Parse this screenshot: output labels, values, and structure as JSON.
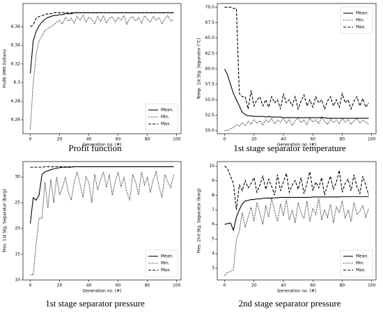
{
  "chart_data": [
    {
      "type": "line",
      "title": "Profit function",
      "xlabel": "Generation no. (#)",
      "ylabel": "Profit (MM Dollars)",
      "x": [
        0,
        2,
        4,
        6,
        8,
        10,
        12,
        14,
        16,
        18,
        20,
        22,
        24,
        26,
        28,
        30,
        32,
        34,
        36,
        38,
        40,
        42,
        44,
        46,
        48,
        50,
        52,
        54,
        56,
        58,
        60,
        62,
        64,
        66,
        68,
        70,
        72,
        74,
        76,
        78,
        80,
        82,
        84,
        86,
        88,
        90,
        92,
        94,
        96,
        98
      ],
      "xlim": [
        -5,
        103
      ],
      "xticks": [
        0,
        20,
        40,
        60,
        80,
        100
      ],
      "ylim": [
        6.245,
        6.385
      ],
      "yticks": [
        6.26,
        6.28,
        6.3,
        6.32,
        6.34,
        6.36
      ],
      "legend": "lower right",
      "series": [
        {
          "name": "Mean.",
          "color": "#000000",
          "dash": "solid",
          "values": [
            6.31,
            6.345,
            6.355,
            6.361,
            6.365,
            6.368,
            6.37,
            6.371,
            6.372,
            6.372,
            6.373,
            6.373,
            6.374,
            6.374,
            6.374,
            6.375,
            6.375,
            6.375,
            6.375,
            6.375,
            6.375,
            6.375,
            6.375,
            6.375,
            6.375,
            6.375,
            6.375,
            6.375,
            6.375,
            6.375,
            6.375,
            6.375,
            6.375,
            6.375,
            6.375,
            6.375,
            6.375,
            6.375,
            6.375,
            6.375,
            6.375,
            6.375,
            6.375,
            6.375,
            6.375,
            6.375,
            6.375,
            6.375,
            6.375,
            6.375
          ]
        },
        {
          "name": "Min.",
          "color": "#000000",
          "dash": "dotted",
          "values": [
            6.25,
            6.3,
            6.33,
            6.345,
            6.35,
            6.356,
            6.358,
            6.36,
            6.362,
            6.365,
            6.367,
            6.363,
            6.37,
            6.366,
            6.369,
            6.364,
            6.371,
            6.367,
            6.372,
            6.365,
            6.37,
            6.368,
            6.363,
            6.371,
            6.366,
            6.372,
            6.364,
            6.369,
            6.371,
            6.365,
            6.37,
            6.367,
            6.372,
            6.363,
            6.369,
            6.371,
            6.366,
            6.37,
            6.364,
            6.372,
            6.368,
            6.365,
            6.371,
            6.367,
            6.37,
            6.363,
            6.369,
            6.372,
            6.366,
            6.368
          ]
        },
        {
          "name": "Max.",
          "color": "#000000",
          "dash": "dashed",
          "values": [
            6.36,
            6.362,
            6.369,
            6.371,
            6.372,
            6.373,
            6.374,
            6.374,
            6.375,
            6.375,
            6.375,
            6.375,
            6.375,
            6.375,
            6.375,
            6.375,
            6.375,
            6.375,
            6.375,
            6.375,
            6.375,
            6.375,
            6.375,
            6.375,
            6.375,
            6.375,
            6.375,
            6.375,
            6.375,
            6.375,
            6.375,
            6.375,
            6.375,
            6.375,
            6.375,
            6.375,
            6.375,
            6.375,
            6.375,
            6.375,
            6.375,
            6.375,
            6.375,
            6.375,
            6.375,
            6.375,
            6.375,
            6.375,
            6.375,
            6.375
          ]
        }
      ]
    },
    {
      "type": "line",
      "title": "1st stage separator temperature",
      "xlabel": "Generation no. (#)",
      "ylabel": "Temp. 1st Stg. Separator (°C)",
      "x": [
        0,
        2,
        4,
        6,
        8,
        10,
        12,
        14,
        16,
        18,
        20,
        22,
        24,
        26,
        28,
        30,
        32,
        34,
        36,
        38,
        40,
        42,
        44,
        46,
        48,
        50,
        52,
        54,
        56,
        58,
        60,
        62,
        64,
        66,
        68,
        70,
        72,
        74,
        76,
        78,
        80,
        82,
        84,
        86,
        88,
        90,
        92,
        94,
        96,
        98
      ],
      "xlim": [
        -5,
        103
      ],
      "xticks": [
        0,
        20,
        40,
        60,
        80,
        100
      ],
      "ylim": [
        49.5,
        70.6
      ],
      "yticks": [
        {
          "value": 50,
          "label": "50.0"
        },
        52.5,
        {
          "value": 55,
          "label": "55.0"
        },
        57.5,
        {
          "value": 60,
          "label": "60.0"
        },
        62.5,
        {
          "value": 65,
          "label": "65.0"
        },
        67.5,
        {
          "value": 70,
          "label": "70.0"
        }
      ],
      "legend": "upper right",
      "series": [
        {
          "name": "Mean.",
          "color": "#000000",
          "dash": "solid",
          "values": [
            60,
            59,
            57.5,
            56,
            55,
            54,
            53,
            52.6,
            52.4,
            52.4,
            52.3,
            52.3,
            52.3,
            52.3,
            52.2,
            52.3,
            52.2,
            52.2,
            52.2,
            52.2,
            52.1,
            52.1,
            52.1,
            52.1,
            52.1,
            52.1,
            52.1,
            52.1,
            52.1,
            52.1,
            52.1,
            52.1,
            52.1,
            52.1,
            52.1,
            52,
            52,
            52,
            52,
            52,
            52,
            52,
            52,
            52,
            52,
            52,
            52,
            52,
            52,
            52
          ]
        },
        {
          "name": "Min.",
          "color": "#000000",
          "dash": "dotted",
          "values": [
            50,
            50,
            50.3,
            50.5,
            51,
            50.7,
            51.3,
            50.8,
            51.5,
            51,
            51.8,
            51.2,
            51.6,
            50.9,
            51.8,
            51.3,
            52,
            51.1,
            51.7,
            51.4,
            52,
            51.2,
            51.8,
            50.8,
            51.6,
            52.1,
            51.3,
            51.7,
            51,
            52,
            51.4,
            51.8,
            51.1,
            52.2,
            51.5,
            51,
            51.9,
            51.3,
            51.7,
            51.1,
            52,
            51.4,
            51.8,
            51,
            51.6,
            52,
            51.2,
            51.7,
            51.4,
            51
          ]
        },
        {
          "name": "Max.",
          "color": "#000000",
          "dash": "dashed",
          "values": [
            70,
            70,
            70,
            69.8,
            69.8,
            56,
            55.5,
            55.5,
            53.5,
            56.5,
            54,
            55,
            55.5,
            54,
            55,
            53.8,
            55.5,
            54.5,
            55,
            53.5,
            56,
            54.5,
            55,
            54,
            55.5,
            53.5,
            54.8,
            55.8,
            54,
            55,
            53.8,
            55.5,
            54.5,
            55,
            53.5,
            54.8,
            55.5,
            54,
            55,
            53.8,
            56,
            54.5,
            55,
            53.5,
            54.8,
            55.5,
            54,
            55.2,
            53.8,
            54.5
          ]
        }
      ]
    },
    {
      "type": "line",
      "title": "1st stage separator pressure",
      "xlabel": "Generation no. (#)",
      "ylabel": "Pres. 1st Stg. Separator (barg)",
      "x": [
        0,
        2,
        4,
        6,
        8,
        10,
        12,
        14,
        16,
        18,
        20,
        22,
        24,
        26,
        28,
        30,
        32,
        34,
        36,
        38,
        40,
        42,
        44,
        46,
        48,
        50,
        52,
        54,
        56,
        58,
        60,
        62,
        64,
        66,
        68,
        70,
        72,
        74,
        76,
        78,
        80,
        82,
        84,
        86,
        88,
        90,
        92,
        94,
        96,
        98
      ],
      "xlim": [
        -5,
        103
      ],
      "xticks": [
        0,
        20,
        40,
        60,
        80,
        100
      ],
      "ylim": [
        10,
        33
      ],
      "yticks": [
        10,
        15,
        20,
        25,
        30
      ],
      "legend": "lower right",
      "series": [
        {
          "name": "Mean.",
          "color": "#000000",
          "dash": "solid",
          "values": [
            21,
            26,
            25.5,
            26.5,
            30.5,
            31,
            31.2,
            31.4,
            31.6,
            31.7,
            31.8,
            31.9,
            31.9,
            31.9,
            31.9,
            32,
            32,
            32,
            32,
            32,
            32,
            32,
            32,
            32,
            32,
            32,
            32,
            32,
            32,
            32,
            32,
            32,
            32,
            32,
            32,
            32,
            32,
            32,
            32,
            32,
            32,
            32,
            32,
            32,
            32,
            32,
            32,
            32,
            32,
            32
          ]
        },
        {
          "name": "Min.",
          "color": "#000000",
          "dash": "dotted",
          "values": [
            11,
            11,
            17,
            22,
            22,
            29,
            24,
            29.5,
            25,
            30,
            26.5,
            28,
            30,
            27,
            25.5,
            29,
            31,
            28.5,
            26,
            30,
            29,
            25,
            30.5,
            27.5,
            29.5,
            31,
            28,
            30.5,
            26.5,
            29,
            31,
            28,
            30,
            27,
            25.5,
            30.5,
            29,
            26.5,
            31,
            28.5,
            30,
            27,
            29.5,
            31,
            28,
            26,
            30.5,
            29,
            28,
            30.5
          ]
        },
        {
          "name": "Max.",
          "color": "#000000",
          "dash": "dashed",
          "values": [
            31.9,
            31.9,
            31.9,
            31.9,
            31.9,
            32,
            32,
            32,
            32,
            32,
            32,
            32,
            32,
            32,
            32,
            32,
            32,
            32,
            32,
            32,
            32,
            32,
            32,
            32,
            32,
            32,
            32,
            32,
            32,
            32,
            32,
            32,
            32,
            32,
            32,
            32,
            32,
            32,
            32,
            32,
            32,
            32,
            32,
            32,
            32,
            32,
            32,
            32,
            32,
            32
          ]
        }
      ]
    },
    {
      "type": "line",
      "title": "2nd stage separator pressure",
      "xlabel": "Generation no. (#)",
      "ylabel": "Pres. 2nd Stg. Separator (barg)",
      "x": [
        0,
        2,
        4,
        6,
        8,
        10,
        12,
        14,
        16,
        18,
        20,
        22,
        24,
        26,
        28,
        30,
        32,
        34,
        36,
        38,
        40,
        42,
        44,
        46,
        48,
        50,
        52,
        54,
        56,
        58,
        60,
        62,
        64,
        66,
        68,
        70,
        72,
        74,
        76,
        78,
        80,
        82,
        84,
        86,
        88,
        90,
        92,
        94,
        96,
        98
      ],
      "xlim": [
        -5,
        103
      ],
      "xticks": [
        0,
        20,
        40,
        60,
        80,
        100
      ],
      "ylim": [
        2.2,
        10.3
      ],
      "yticks": [
        3,
        4,
        5,
        6,
        7,
        8,
        9,
        10
      ],
      "legend": "lower right",
      "series": [
        {
          "name": "Mean.",
          "color": "#000000",
          "dash": "solid",
          "values": [
            6,
            6.05,
            6.1,
            5.6,
            6.5,
            7,
            7.4,
            7.6,
            7.65,
            7.7,
            7.7,
            7.75,
            7.75,
            7.78,
            7.8,
            7.8,
            7.8,
            7.82,
            7.82,
            7.85,
            7.85,
            7.85,
            7.85,
            7.85,
            7.85,
            7.85,
            7.85,
            7.85,
            7.85,
            7.85,
            7.88,
            7.88,
            7.88,
            7.88,
            7.88,
            7.88,
            7.88,
            7.88,
            7.88,
            7.88,
            7.9,
            7.9,
            7.9,
            7.9,
            7.9,
            7.9,
            7.9,
            7.9,
            7.9,
            7.9
          ]
        },
        {
          "name": "Min.",
          "color": "#000000",
          "dash": "dotted",
          "values": [
            2.5,
            2.7,
            2.8,
            2.9,
            5,
            5.5,
            6.8,
            5.8,
            6.5,
            7.2,
            6.2,
            7.5,
            6.8,
            6,
            7.3,
            6.5,
            7.8,
            6.9,
            6.2,
            7.4,
            6.6,
            7.7,
            6.3,
            7,
            6.1,
            7.5,
            6.8,
            6.4,
            7.6,
            6.2,
            7.1,
            6.7,
            7.8,
            6.3,
            7,
            6.5,
            7.4,
            6.1,
            7.2,
            6.8,
            7.6,
            6.4,
            7,
            6.2,
            7.5,
            6.7,
            6.9,
            7.3,
            6.5,
            7.1
          ]
        },
        {
          "name": "Max.",
          "color": "#000000",
          "dash": "dashed",
          "values": [
            10,
            9.8,
            9.3,
            8.8,
            7,
            8.7,
            8.3,
            9,
            8.5,
            8.8,
            9.2,
            8.2,
            8.7,
            9.3,
            8.4,
            9.1,
            8.6,
            8,
            9.4,
            8.3,
            8.9,
            9.5,
            8.2,
            8.7,
            9,
            8.4,
            9.2,
            8.1,
            8.8,
            9.6,
            8.3,
            8.9,
            8.5,
            9.2,
            8,
            8.7,
            9.3,
            8.4,
            8.9,
            9.7,
            8.2,
            8.8,
            9.1,
            8.3,
            9.4,
            8.6,
            8.1,
            9.3,
            8.7,
            8
          ]
        }
      ]
    }
  ]
}
